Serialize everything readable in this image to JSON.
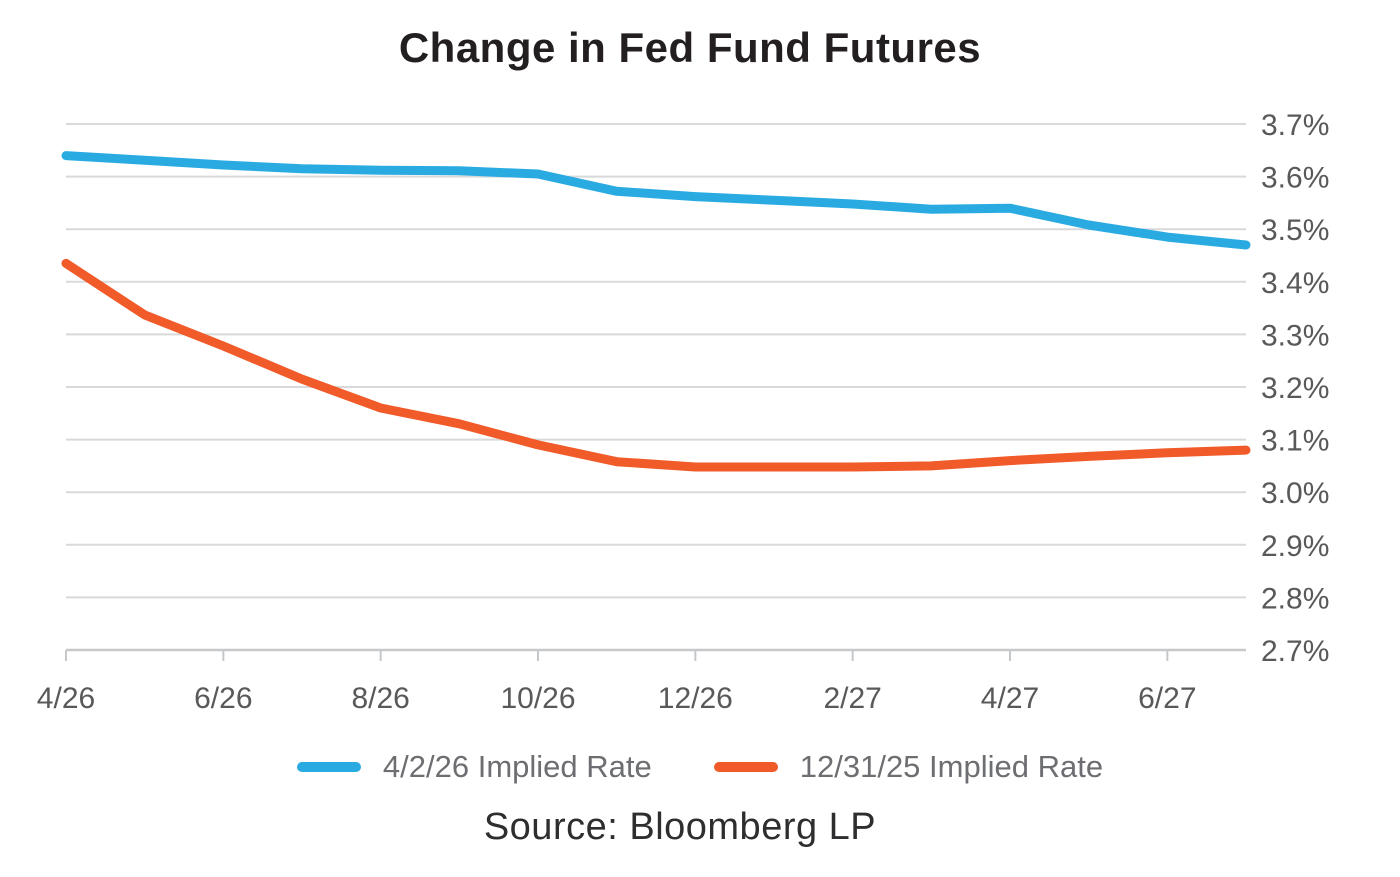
{
  "title": "Change in Fed Fund Futures",
  "source": "Source: Bloomberg LP",
  "legend": [
    {
      "label": "4/2/26 Implied Rate",
      "color": "#29ABE2"
    },
    {
      "label": "12/31/25 Implied Rate",
      "color": "#F15A29"
    }
  ],
  "colors": {
    "blue_series": "#29ABE2",
    "orange_series": "#F15A29",
    "gridline": "#D8D9DA",
    "axis_line": "#C6C8CA",
    "tick_label": "#58595B",
    "legend_text": "#6D6E71",
    "title_text": "#231F20",
    "source_text": "#2E2E30"
  },
  "chart_data": {
    "type": "line",
    "title": "Change in Fed Fund Futures",
    "source": "Source: Bloomberg LP",
    "x": [
      "4/26",
      "5/26",
      "6/26",
      "7/26",
      "8/26",
      "9/26",
      "10/26",
      "11/26",
      "12/26",
      "1/27",
      "2/27",
      "3/27",
      "4/27",
      "5/27",
      "6/27",
      "7/27"
    ],
    "x_tick_labels": [
      "4/26",
      "6/26",
      "8/26",
      "10/26",
      "12/26",
      "2/27",
      "4/27",
      "6/27"
    ],
    "x_tick_every": 2,
    "series": [
      {
        "name": "4/2/26 Implied Rate",
        "color": "#29ABE2",
        "values": [
          3.64,
          3.631,
          3.622,
          3.615,
          3.612,
          3.611,
          3.605,
          3.572,
          3.562,
          3.555,
          3.548,
          3.538,
          3.54,
          3.508,
          3.485,
          3.47
        ]
      },
      {
        "name": "12/31/25 Implied Rate",
        "color": "#F15A29",
        "values": [
          3.435,
          3.337,
          3.278,
          3.215,
          3.16,
          3.13,
          3.09,
          3.058,
          3.048,
          3.048,
          3.048,
          3.05,
          3.06,
          3.068,
          3.075,
          3.08
        ]
      }
    ],
    "ylim": [
      2.7,
      3.7
    ],
    "y_ticks": [
      3.7,
      3.6,
      3.5,
      3.4,
      3.3,
      3.2,
      3.1,
      3.0,
      2.9,
      2.8,
      2.7
    ],
    "y_tick_labels": [
      "3.7%",
      "3.6%",
      "3.5%",
      "3.4%",
      "3.3%",
      "3.2%",
      "3.1%",
      "3.0%",
      "2.9%",
      "2.8%",
      "2.7%"
    ],
    "y_axis_side": "right",
    "grid": "horizontal",
    "legend_position": "bottom"
  }
}
